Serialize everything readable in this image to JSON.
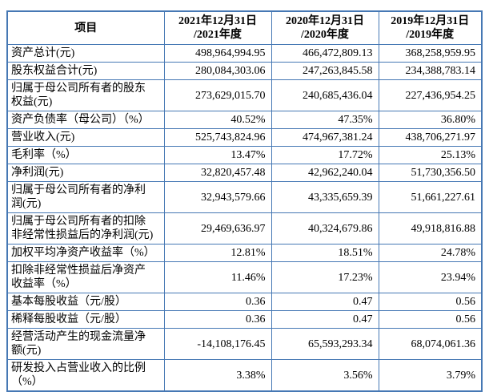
{
  "table": {
    "border_color": "#4678b4",
    "header": {
      "item": "项目",
      "periods": [
        "2021年12月31日\n/2021年度",
        "2020年12月31日\n/2020年度",
        "2019年12月31日\n/2019年度"
      ]
    },
    "rows": [
      {
        "label": "资产总计(元)",
        "values": [
          "498,964,994.95",
          "466,472,809.13",
          "368,258,959.95"
        ]
      },
      {
        "label": "股东权益合计(元)",
        "values": [
          "280,084,303.06",
          "247,263,845.58",
          "234,388,783.14"
        ]
      },
      {
        "label": "归属于母公司所有者的股东\n权益(元)",
        "values": [
          "273,629,015.70",
          "240,685,436.04",
          "227,436,954.25"
        ]
      },
      {
        "label": "资产负债率（母公司）（%）",
        "values": [
          "40.52%",
          "47.35%",
          "36.80%"
        ]
      },
      {
        "label": "营业收入(元)",
        "values": [
          "525,743,824.96",
          "474,967,381.24",
          "438,706,271.97"
        ]
      },
      {
        "label": "毛利率（%）",
        "values": [
          "13.47%",
          "17.72%",
          "25.13%"
        ]
      },
      {
        "label": "净利润(元)",
        "values": [
          "32,820,457.48",
          "42,962,240.04",
          "51,730,356.50"
        ]
      },
      {
        "label": "归属于母公司所有者的净利\n润(元)",
        "values": [
          "32,943,579.66",
          "43,335,659.39",
          "51,661,227.61"
        ]
      },
      {
        "label": "归属于母公司所有者的扣除\n非经常性损益后的净利润(元)",
        "values": [
          "29,469,636.97",
          "40,324,679.86",
          "49,918,816.88"
        ]
      },
      {
        "label": "加权平均净资产收益率（%）",
        "values": [
          "12.81%",
          "18.51%",
          "24.78%"
        ]
      },
      {
        "label": "扣除非经常性损益后净资产\n收益率（%）",
        "values": [
          "11.46%",
          "17.23%",
          "23.94%"
        ]
      },
      {
        "label": "基本每股收益（元/股）",
        "values": [
          "0.36",
          "0.47",
          "0.56"
        ]
      },
      {
        "label": "稀释每股收益（元/股）",
        "values": [
          "0.36",
          "0.47",
          "0.56"
        ]
      },
      {
        "label": "经营活动产生的现金流量净\n额(元)",
        "values": [
          "-14,108,176.45",
          "65,593,293.34",
          "68,074,061.36"
        ]
      },
      {
        "label": "研发投入占营业收入的比例\n（%）",
        "values": [
          "3.38%",
          "3.56%",
          "3.79%"
        ]
      }
    ]
  }
}
